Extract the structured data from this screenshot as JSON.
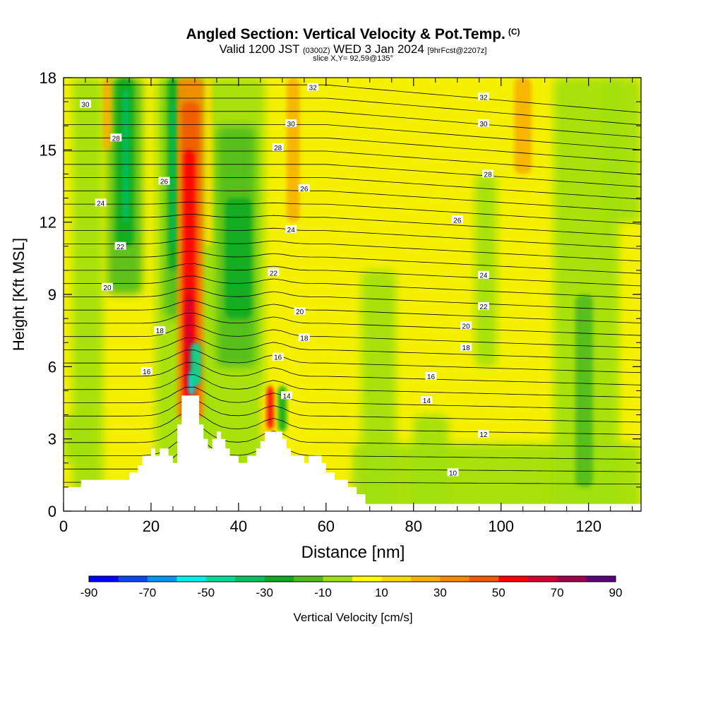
{
  "header": {
    "title": "Angled Section: Vertical Velocity & Pot.Temp.",
    "title_tag": "(C)",
    "valid_prefix": "Valid 1200 JST",
    "valid_zulu": "(0300Z)",
    "valid_date": "WED 3 Jan 2024",
    "valid_fcst": "[9hrFcst@2207z]",
    "slice": "slice X,Y= 92,59@135°"
  },
  "chart_data": {
    "type": "heatmap",
    "xlabel": "Distance [nm]",
    "ylabel": "Height [Kft MSL]",
    "xlim": [
      0,
      132
    ],
    "ylim": [
      0,
      18
    ],
    "x_ticks": [
      0,
      20,
      40,
      60,
      80,
      100,
      120
    ],
    "y_ticks": [
      0,
      3,
      6,
      9,
      12,
      15,
      18
    ],
    "colorbar": {
      "label": "Vertical Velocity [cm/s]",
      "tick_labels": [
        "-90",
        "-70",
        "-50",
        "-30",
        "-10",
        "10",
        "30",
        "50",
        "70",
        "90"
      ],
      "colors": [
        "#0000ff",
        "#0a46f0",
        "#0096f0",
        "#00f0f0",
        "#00dc96",
        "#00c060",
        "#10aa20",
        "#50bc1c",
        "#a0e010",
        "#ffff00",
        "#fada00",
        "#f8b000",
        "#f58800",
        "#f05a00",
        "#ff0000",
        "#d20030",
        "#a0004c",
        "#5a007a"
      ]
    },
    "contour_levels": [
      10,
      12,
      14,
      16,
      18,
      20,
      22,
      24,
      26,
      28,
      30,
      32
    ],
    "contour_labels": [
      {
        "v": "32",
        "x": 57,
        "y": 17.6
      },
      {
        "v": "32",
        "x": 96,
        "y": 17.2
      },
      {
        "v": "30",
        "x": 5,
        "y": 16.9
      },
      {
        "v": "30",
        "x": 52,
        "y": 16.1
      },
      {
        "v": "30",
        "x": 96,
        "y": 16.1
      },
      {
        "v": "28",
        "x": 12,
        "y": 15.5
      },
      {
        "v": "28",
        "x": 49,
        "y": 15.1
      },
      {
        "v": "28",
        "x": 97,
        "y": 14.0
      },
      {
        "v": "26",
        "x": 23,
        "y": 13.7
      },
      {
        "v": "26",
        "x": 55,
        "y": 13.4
      },
      {
        "v": "26",
        "x": 90,
        "y": 12.1
      },
      {
        "v": "24",
        "x": 8.5,
        "y": 12.8
      },
      {
        "v": "24",
        "x": 52,
        "y": 11.7
      },
      {
        "v": "24",
        "x": 96,
        "y": 9.8
      },
      {
        "v": "22",
        "x": 13,
        "y": 11.0
      },
      {
        "v": "22",
        "x": 48,
        "y": 9.9
      },
      {
        "v": "22",
        "x": 96,
        "y": 8.5
      },
      {
        "v": "20",
        "x": 10,
        "y": 9.3
      },
      {
        "v": "20",
        "x": 54,
        "y": 8.3
      },
      {
        "v": "20",
        "x": 92,
        "y": 7.7
      },
      {
        "v": "18",
        "x": 22,
        "y": 7.5
      },
      {
        "v": "18",
        "x": 55,
        "y": 7.2
      },
      {
        "v": "18",
        "x": 92,
        "y": 6.8
      },
      {
        "v": "16",
        "x": 19,
        "y": 5.8
      },
      {
        "v": "16",
        "x": 49,
        "y": 6.4
      },
      {
        "v": "16",
        "x": 84,
        "y": 5.6
      },
      {
        "v": "14",
        "x": 51,
        "y": 4.8
      },
      {
        "v": "14",
        "x": 83,
        "y": 4.6
      },
      {
        "v": "12",
        "x": 96,
        "y": 3.2
      },
      {
        "v": "10",
        "x": 89,
        "y": 1.6
      }
    ],
    "terrain": [
      [
        0,
        1.0
      ],
      [
        4,
        1.0
      ],
      [
        4,
        1.3
      ],
      [
        8,
        1.3
      ],
      [
        8,
        1.3
      ],
      [
        13,
        1.3
      ],
      [
        13,
        1.3
      ],
      [
        15,
        1.3
      ],
      [
        15,
        1.6
      ],
      [
        17,
        1.6
      ],
      [
        17,
        1.9
      ],
      [
        18,
        1.9
      ],
      [
        18,
        2.3
      ],
      [
        20,
        2.3
      ],
      [
        20,
        2.6
      ],
      [
        21,
        2.6
      ],
      [
        21,
        2.3
      ],
      [
        22,
        2.3
      ],
      [
        22,
        2.6
      ],
      [
        24,
        2.6
      ],
      [
        24,
        2.3
      ],
      [
        25,
        2.3
      ],
      [
        25,
        2.0
      ],
      [
        26,
        2.0
      ],
      [
        26,
        3.6
      ],
      [
        27,
        3.6
      ],
      [
        27,
        4.8
      ],
      [
        31,
        4.8
      ],
      [
        31,
        3.6
      ],
      [
        32,
        3.6
      ],
      [
        32,
        3.0
      ],
      [
        33,
        3.0
      ],
      [
        33,
        2.6
      ],
      [
        34,
        2.6
      ],
      [
        34,
        3.0
      ],
      [
        35,
        3.0
      ],
      [
        35,
        3.3
      ],
      [
        36,
        3.3
      ],
      [
        36,
        3.0
      ],
      [
        37,
        3.0
      ],
      [
        37,
        2.6
      ],
      [
        38,
        2.6
      ],
      [
        38,
        2.3
      ],
      [
        40,
        2.3
      ],
      [
        40,
        2.0
      ],
      [
        42,
        2.0
      ],
      [
        42,
        2.3
      ],
      [
        44,
        2.3
      ],
      [
        44,
        2.6
      ],
      [
        45,
        2.6
      ],
      [
        45,
        2.9
      ],
      [
        46,
        2.9
      ],
      [
        46,
        3.3
      ],
      [
        50,
        3.3
      ],
      [
        50,
        3.0
      ],
      [
        51,
        3.0
      ],
      [
        51,
        2.6
      ],
      [
        52,
        2.6
      ],
      [
        52,
        2.3
      ],
      [
        55,
        2.3
      ],
      [
        55,
        2.0
      ],
      [
        56,
        2.0
      ],
      [
        56,
        2.3
      ],
      [
        59,
        2.3
      ],
      [
        59,
        2.0
      ],
      [
        60,
        2.0
      ],
      [
        60,
        1.6
      ],
      [
        62,
        1.6
      ],
      [
        62,
        1.3
      ],
      [
        65,
        1.3
      ],
      [
        65,
        1.0
      ],
      [
        67,
        1.0
      ],
      [
        67,
        0.7
      ],
      [
        69,
        0.7
      ],
      [
        69,
        0.3
      ],
      [
        132,
        0.3
      ]
    ]
  },
  "legend": {
    "colorbar_label": "Vertical Velocity [cm/s]"
  },
  "colors": {
    "background": "#ffffff",
    "base_field": "#f5f000",
    "terrain": "#ffffff"
  }
}
